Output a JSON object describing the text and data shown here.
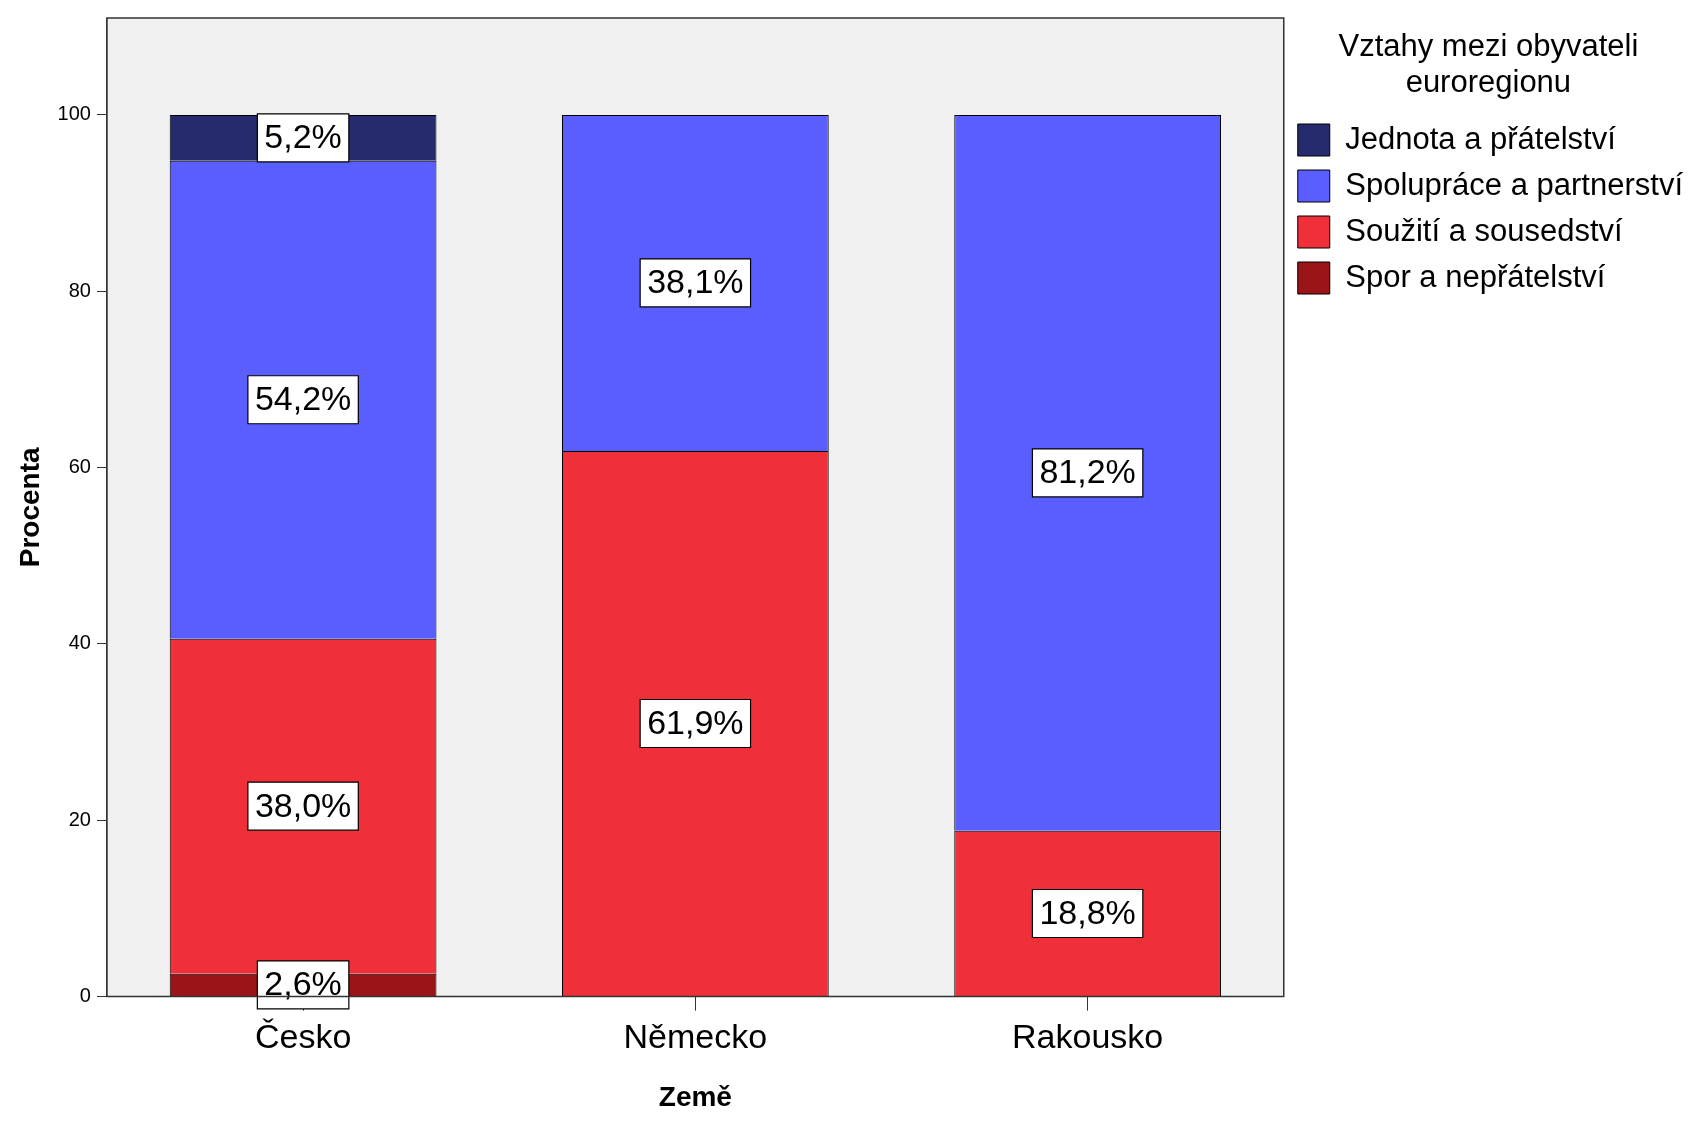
{
  "chart_data": {
    "type": "bar",
    "stacked": true,
    "xlabel": "Země",
    "ylabel": "Procenta",
    "legend_title": "Vztahy mezi obyvateli euroregionu",
    "legend": "top right",
    "grid": false,
    "categories": [
      "Česko",
      "Německo",
      "Rakousko"
    ],
    "ylim": [
      0,
      111
    ],
    "yticks": [
      0,
      20,
      40,
      60,
      80,
      100
    ],
    "series": [
      {
        "name": "Spor a nepřátelství",
        "color": "#9b1418",
        "values": [
          2.6,
          null,
          null
        ],
        "value_labels": [
          "2,6%",
          null,
          null
        ]
      },
      {
        "name": "Soužití a sousedství",
        "color": "#ef3038",
        "values": [
          38.0,
          61.9,
          18.8
        ],
        "value_labels": [
          "38,0%",
          "61,9%",
          "18,8%"
        ]
      },
      {
        "name": "Spolupráce a partnerství",
        "color": "#5b5eff",
        "values": [
          54.2,
          38.1,
          81.2
        ],
        "value_labels": [
          "54,2%",
          "38,1%",
          "81,2%"
        ]
      },
      {
        "name": "Jednota a přátelství",
        "color": "#262a6e",
        "values": [
          5.2,
          null,
          null
        ],
        "value_labels": [
          "5,2%",
          null,
          null
        ]
      }
    ]
  }
}
